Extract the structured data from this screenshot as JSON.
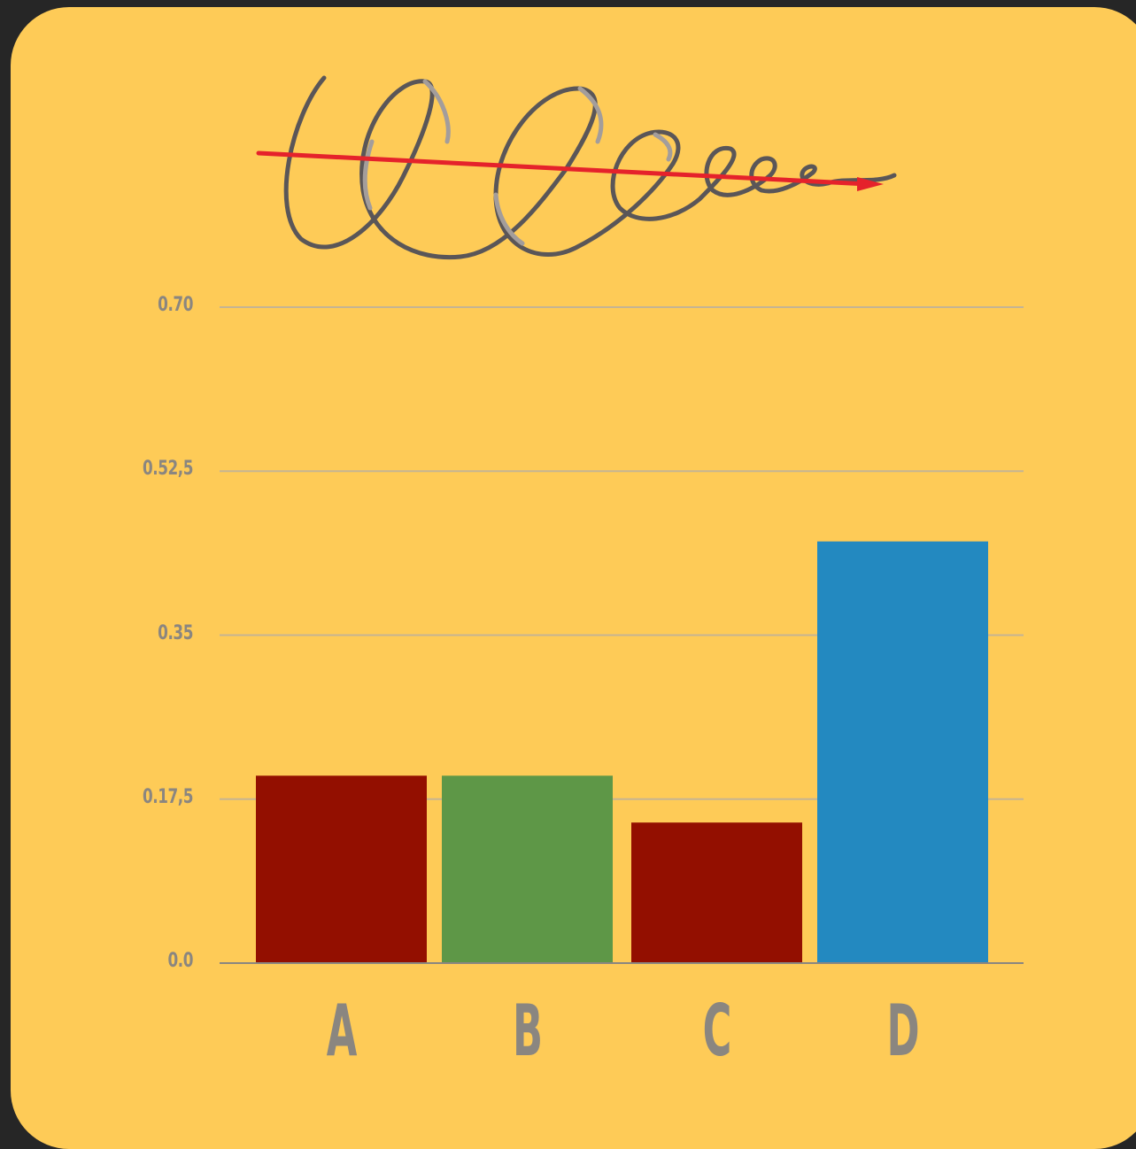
{
  "chart_data": {
    "type": "bar",
    "categories": [
      "A",
      "B",
      "C",
      "D"
    ],
    "values": [
      0.2,
      0.2,
      0.15,
      0.45
    ],
    "colors": [
      "#930F00",
      "#5E9747",
      "#930F00",
      "#2389C0"
    ],
    "y_ticks": [
      "0.0",
      "0.17,5",
      "0.35",
      "0.52,5",
      "0.70"
    ],
    "ylim": [
      0,
      0.7
    ],
    "grid": true,
    "title": "",
    "xlabel": "",
    "ylabel": ""
  },
  "decoration": {
    "scribble_color": "#5A5658",
    "scribble_highlight": "#A39D9B",
    "arrow_color": "#E5222B",
    "scribble_icon": "handwritten-loops-with-red-arrow"
  }
}
